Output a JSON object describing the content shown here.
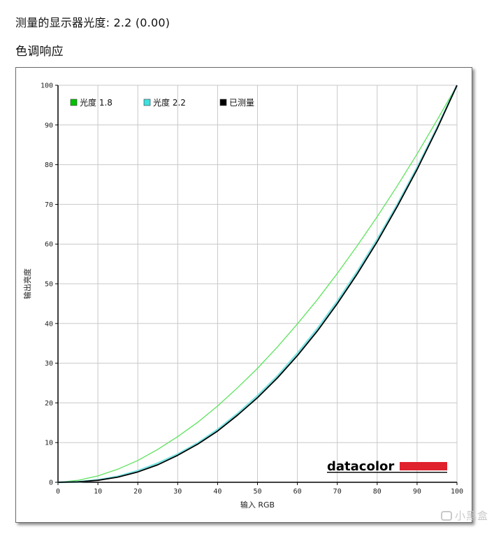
{
  "header": {
    "gamma_label": "测量的显示器光度:",
    "gamma_value": "2.2 (0.00)",
    "section_title": "色调响应"
  },
  "watermark": {
    "text": "小黑盒"
  },
  "chart_data": {
    "type": "line",
    "title": "",
    "xlabel": "输入 RGB",
    "ylabel": "输出亮度",
    "xlim": [
      0,
      100
    ],
    "ylim": [
      0,
      100
    ],
    "x_ticks": [
      0,
      10,
      20,
      30,
      40,
      50,
      60,
      70,
      80,
      90,
      100
    ],
    "y_ticks": [
      0,
      10,
      20,
      30,
      40,
      50,
      60,
      70,
      80,
      90,
      100
    ],
    "grid": true,
    "legend_position": "top-left",
    "brand_logo": "datacolor",
    "colors": {
      "gamma18": "#5ee35e",
      "gamma22": "#7fe3e3",
      "measured": "#000000",
      "grid": "#c8c8c8",
      "logo_bar": "#e0212e"
    },
    "series": [
      {
        "name": "光度 1.8",
        "color": "#5ee35e",
        "legend_swatch": "#00c000",
        "x": [
          0,
          5,
          10,
          15,
          20,
          25,
          30,
          35,
          40,
          45,
          50,
          55,
          60,
          65,
          70,
          75,
          80,
          85,
          90,
          95,
          100
        ],
        "y": [
          0,
          0.5,
          1.6,
          3.3,
          5.5,
          8.3,
          11.5,
          15.1,
          19.2,
          23.8,
          28.7,
          34.1,
          39.9,
          46.0,
          52.6,
          59.6,
          66.9,
          74.6,
          82.7,
          91.2,
          100
        ]
      },
      {
        "name": "光度 2.2",
        "color": "#7fe3e3",
        "legend_swatch": "#40e0e0",
        "x": [
          0,
          5,
          10,
          15,
          20,
          25,
          30,
          35,
          40,
          45,
          50,
          55,
          60,
          65,
          70,
          75,
          80,
          85,
          90,
          95,
          100
        ],
        "y": [
          0,
          0.1,
          0.6,
          1.5,
          2.9,
          4.8,
          7.1,
          9.9,
          13.3,
          17.3,
          21.8,
          26.8,
          32.5,
          38.7,
          45.6,
          53.1,
          61.2,
          69.9,
          79.3,
          89.3,
          100
        ]
      },
      {
        "name": "已测量",
        "color": "#000000",
        "legend_swatch": "#000000",
        "x": [
          0,
          5,
          10,
          15,
          20,
          25,
          30,
          35,
          40,
          45,
          50,
          55,
          60,
          65,
          70,
          75,
          80,
          85,
          90,
          95,
          100
        ],
        "y": [
          0,
          0.1,
          0.5,
          1.3,
          2.6,
          4.4,
          6.8,
          9.6,
          12.9,
          16.9,
          21.3,
          26.3,
          31.9,
          38.1,
          45.0,
          52.5,
          60.6,
          69.4,
          78.8,
          89.0,
          100
        ]
      }
    ]
  }
}
